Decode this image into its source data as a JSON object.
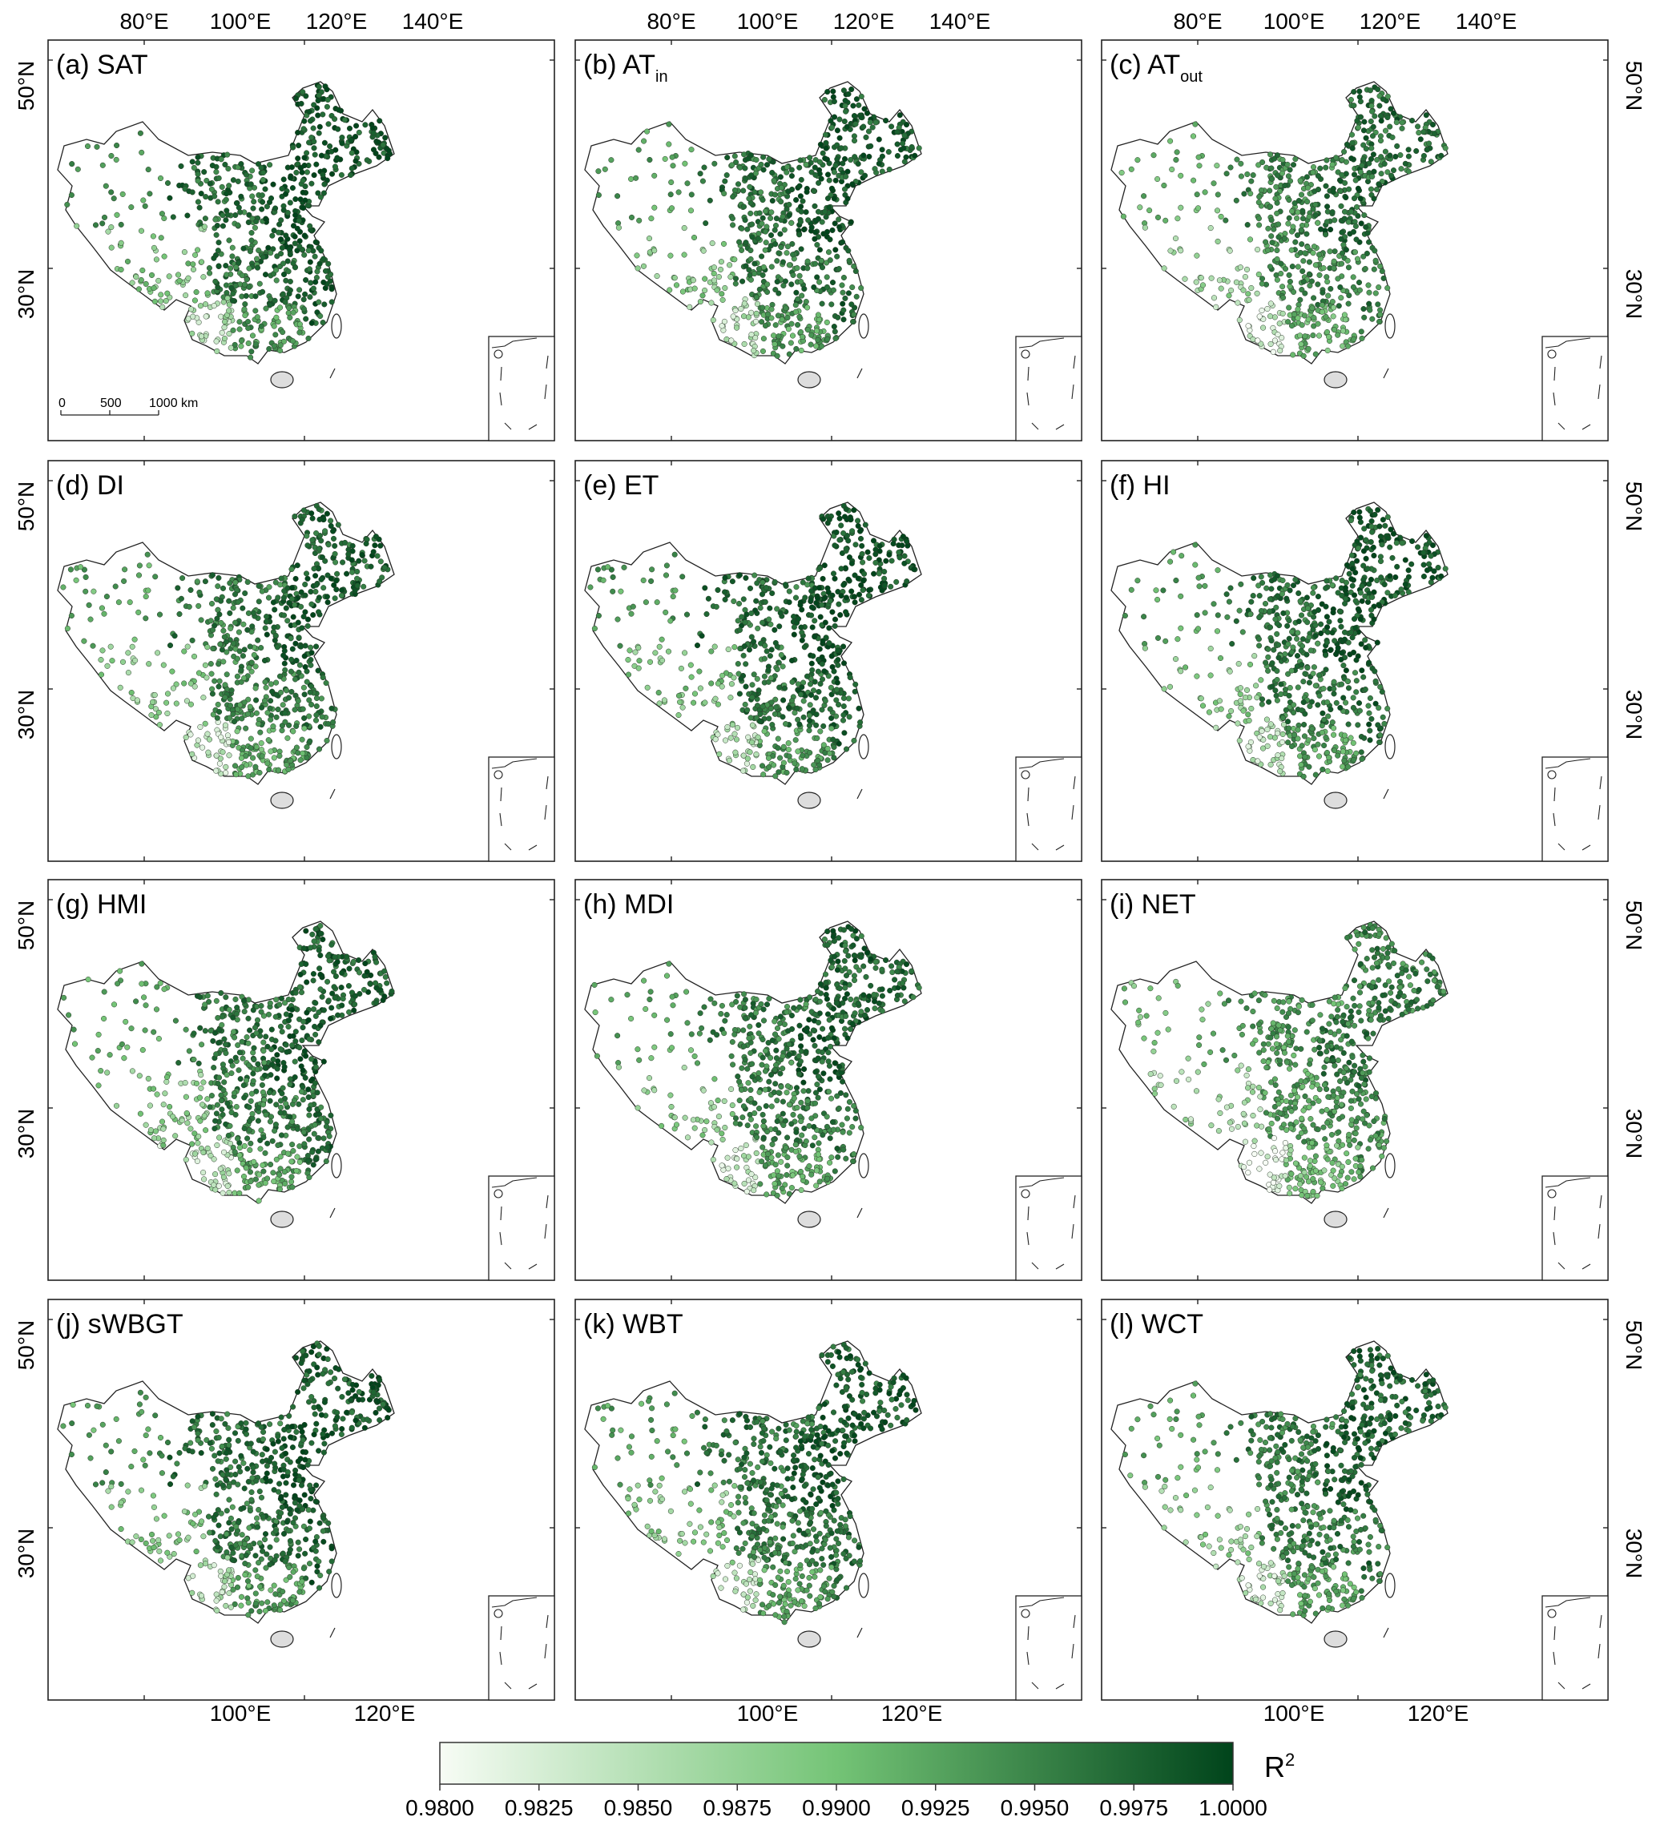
{
  "panels": [
    {
      "id": "a",
      "label": "(a)  SAT",
      "base": "SAT",
      "sub": "",
      "scalebar": true
    },
    {
      "id": "b",
      "label": "(b)  AT",
      "base": "AT",
      "sub": "in",
      "scalebar": false
    },
    {
      "id": "c",
      "label": "(c)  AT",
      "base": "AT",
      "sub": "out",
      "scalebar": false
    },
    {
      "id": "d",
      "label": "(d)  DI",
      "base": "DI",
      "sub": "",
      "scalebar": false
    },
    {
      "id": "e",
      "label": "(e)  ET",
      "base": "ET",
      "sub": "",
      "scalebar": false
    },
    {
      "id": "f",
      "label": "(f)  HI",
      "base": "HI",
      "sub": "",
      "scalebar": false
    },
    {
      "id": "g",
      "label": "(g)  HMI",
      "base": "HMI",
      "sub": "",
      "scalebar": false
    },
    {
      "id": "h",
      "label": "(h)  MDI",
      "base": "MDI",
      "sub": "",
      "scalebar": false
    },
    {
      "id": "i",
      "label": "(i)  NET",
      "base": "NET",
      "sub": "",
      "scalebar": false
    },
    {
      "id": "j",
      "label": "(j)  sWBGT",
      "base": "sWBGT",
      "sub": "",
      "scalebar": false
    },
    {
      "id": "k",
      "label": "(k)  WBT",
      "base": "WBT",
      "sub": "",
      "scalebar": false
    },
    {
      "id": "l",
      "label": "(l)  WCT",
      "base": "WCT",
      "sub": "",
      "scalebar": false
    }
  ],
  "axes": {
    "top_lon_ticks": [
      "80°E",
      "100°E",
      "120°E",
      "140°E"
    ],
    "bottom_lon_ticks": [
      "100°E",
      "120°E"
    ],
    "lat_ticks": [
      "50°N",
      "30°N"
    ]
  },
  "scalebar": {
    "labels": [
      "0",
      "500",
      "1000 km"
    ]
  },
  "colorbar": {
    "label": "R",
    "label_sup": "2",
    "min": 0.98,
    "max": 1.0,
    "ticks": [
      "0.9800",
      "0.9825",
      "0.9850",
      "0.9875",
      "0.9900",
      "0.9925",
      "0.9950",
      "0.9975",
      "1.0000"
    ],
    "color_low": "#f7fcf5",
    "color_mid": "#74c476",
    "color_high": "#00441b"
  },
  "chart_data": {
    "type": "scatter",
    "description_encoding": "station R2 values by region (lon, lat)",
    "variable": "R2",
    "ylim_color": [
      0.98,
      1.0
    ],
    "region_typical_r2": {
      "northeast": 0.9985,
      "north_china_plain": 0.9992,
      "east_coast": 0.9975,
      "central": 0.9965,
      "sichuan_basin": 0.996,
      "south": 0.993,
      "southwest_yunnan": 0.985,
      "hainan": 0.983,
      "northwest_xinjiang": 0.993,
      "tibet_edge": 0.989
    }
  }
}
